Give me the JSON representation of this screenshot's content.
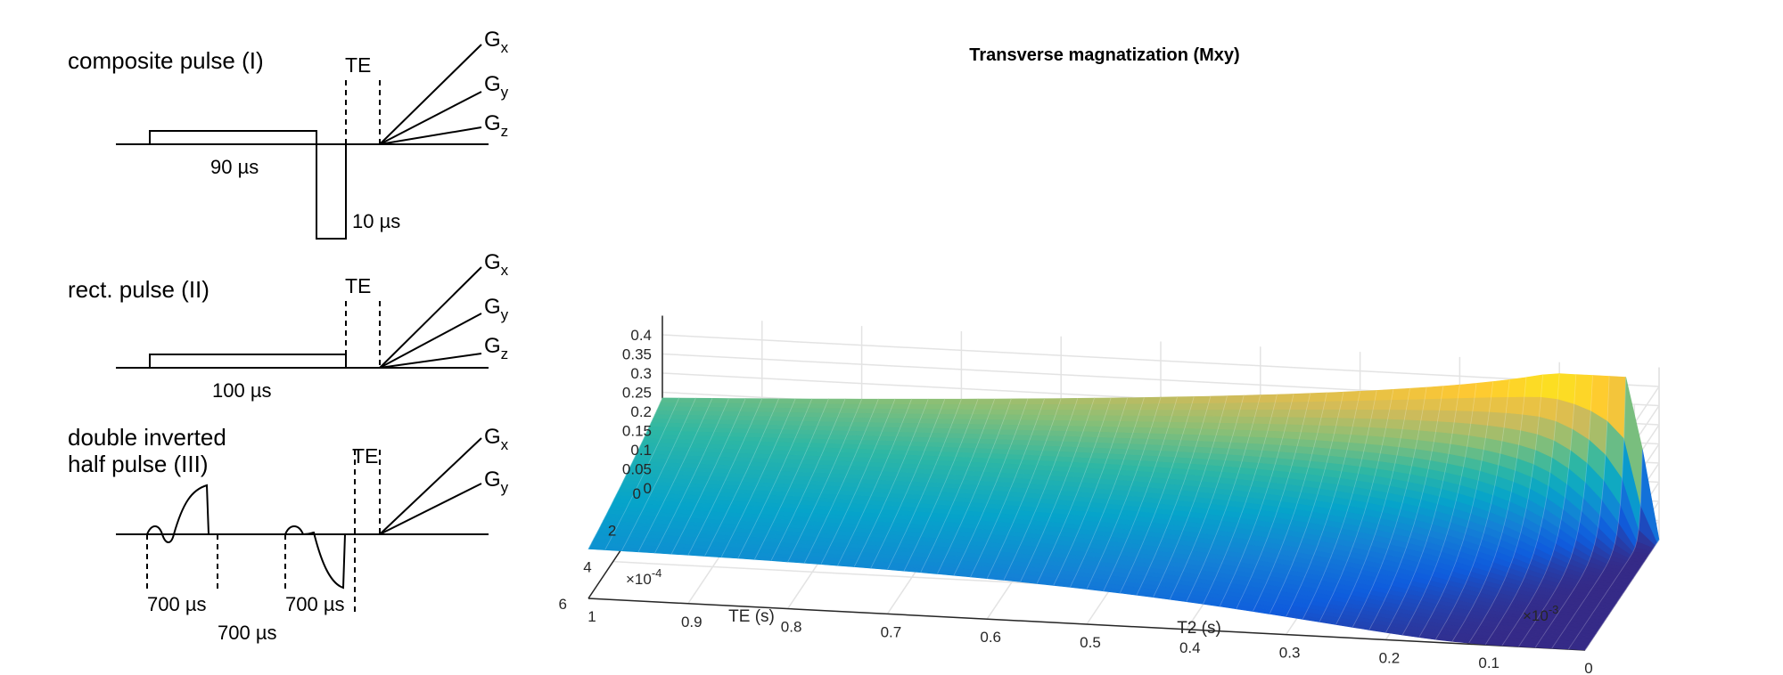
{
  "diagram": {
    "pulse_I_title": "composite pulse (I)",
    "pulse_II_title": "rect. pulse (II)",
    "pulse_III_title_line1": "double inverted",
    "pulse_III_title_line2": "half pulse (III)",
    "te_label": "TE",
    "grad_letter": "G",
    "grad_x_sub": "x",
    "grad_y_sub": "y",
    "grad_z_sub": "z",
    "pulse_I_dur1": "90 µs",
    "pulse_I_dur2": "10 µs",
    "pulse_II_dur": "100 µs",
    "pulse_III_dur1": "700 µs",
    "pulse_III_dur2": "700 µs",
    "pulse_III_dur3": "700 µs"
  },
  "chart_data": {
    "type": "surface",
    "title": "Transverse magnatization (Mxy)",
    "xlabel": "TE (s)",
    "ylabel": "T2 (s)",
    "x_exponent": "×10",
    "x_exponent_power": "-4",
    "y_exponent": "×10",
    "y_exponent_power": "-3",
    "te_range": [
      0,
      0.0006
    ],
    "t2_range": [
      0,
      0.001
    ],
    "z_range": [
      0,
      0.45
    ],
    "te_ticks": [
      "0",
      "2",
      "4",
      "6"
    ],
    "t2_ticks": [
      "0",
      "0.1",
      "0.2",
      "0.3",
      "0.4",
      "0.5",
      "0.6",
      "0.7",
      "0.8",
      "0.9",
      "1"
    ],
    "z_ticks": [
      "0",
      "0.05",
      "0.1",
      "0.15",
      "0.2",
      "0.25",
      "0.3",
      "0.35",
      "0.4"
    ],
    "peak_value": 0.42,
    "colormap": [
      "#352a87",
      "#0f5cdd",
      "#1481d6",
      "#06a4ca",
      "#2eb7a4",
      "#87bf77",
      "#d1bb59",
      "#fec832",
      "#f9fb0e"
    ],
    "grid": true
  }
}
